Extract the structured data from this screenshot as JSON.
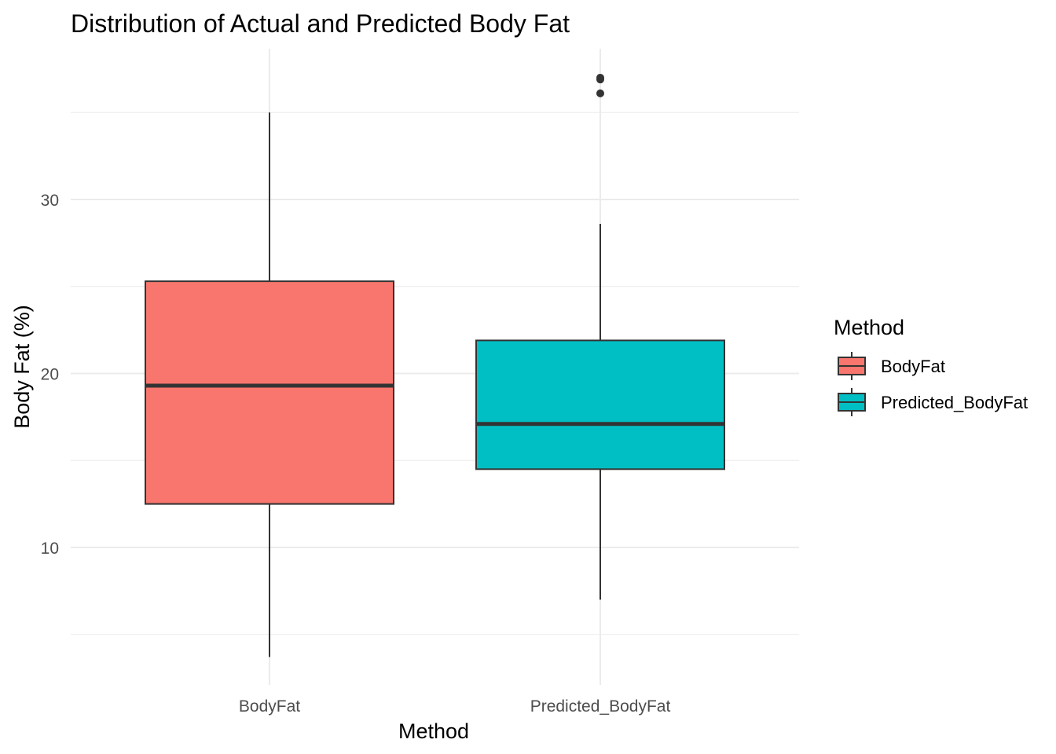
{
  "chart_data": {
    "type": "boxplot",
    "title": "Distribution of Actual and Predicted Body Fat",
    "xlabel": "Method",
    "ylabel": "Body Fat (%)",
    "ylim": [
      2.5,
      39.5
    ],
    "yticks": [
      10,
      20,
      30
    ],
    "y_minor_gridlines": [
      5,
      15,
      25,
      35
    ],
    "grid": true,
    "legend": {
      "title": "Method",
      "position": "right"
    },
    "categories": [
      "BodyFat",
      "Predicted_BodyFat"
    ],
    "series": [
      {
        "name": "BodyFat",
        "color": "#F8766D",
        "min": 3.7,
        "q1": 12.5,
        "median": 19.3,
        "q3": 25.3,
        "max": 35.0,
        "outliers": []
      },
      {
        "name": "Predicted_BodyFat",
        "color": "#00BFC4",
        "min": 7.0,
        "q1": 14.5,
        "median": 17.1,
        "q3": 21.9,
        "max": 28.6,
        "outliers": [
          36.1,
          36.9,
          37.0
        ]
      }
    ]
  }
}
